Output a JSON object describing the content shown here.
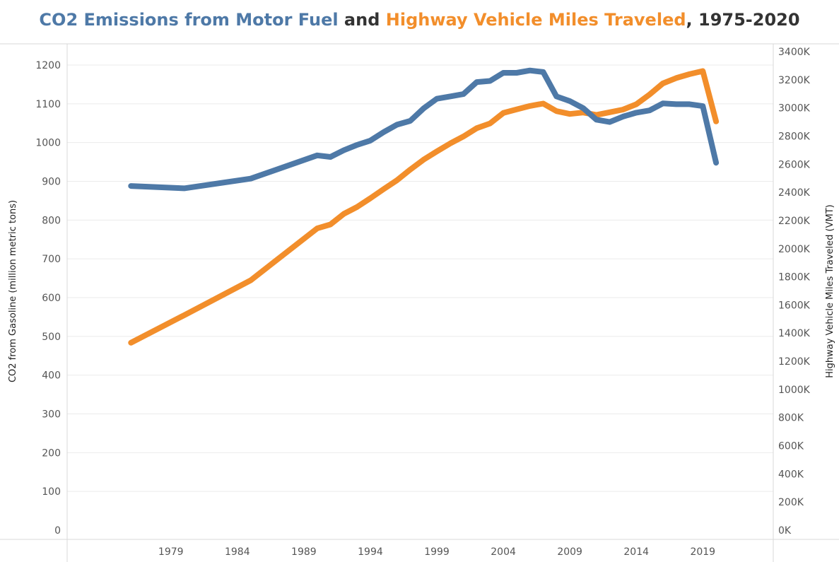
{
  "title": {
    "part1": "CO2 Emissions from Motor Fuel",
    "part2": " and ",
    "part3": "Highway Vehicle Miles Traveled",
    "part4": ", 1975-2020"
  },
  "colors": {
    "co2": "#4e79a7",
    "vmt": "#f28e2b",
    "grid": "#ebebeb",
    "axis": "#d9d9d9",
    "title_dark": "#333333"
  },
  "chart_data": {
    "type": "line",
    "x": [
      1976,
      1980,
      1985,
      1990,
      1991,
      1992,
      1993,
      1994,
      1995,
      1996,
      1997,
      1998,
      1999,
      2000,
      2001,
      2002,
      2003,
      2004,
      2005,
      2006,
      2007,
      2008,
      2009,
      2010,
      2011,
      2012,
      2013,
      2014,
      2015,
      2016,
      2017,
      2018,
      2019,
      2020
    ],
    "series": [
      {
        "name": "CO2 Emissions from Motor Fuel",
        "axis": "left",
        "values": [
          888,
          882,
          907,
          967,
          963,
          980,
          994,
          1005,
          1027,
          1046,
          1056,
          1088,
          1113,
          1119,
          1125,
          1156,
          1159,
          1180,
          1180,
          1186,
          1182,
          1119,
          1107,
          1089,
          1059,
          1053,
          1067,
          1077,
          1083,
          1101,
          1099,
          1099,
          1094,
          948
        ]
      },
      {
        "name": "Highway Vehicle Miles Traveled",
        "axis": "right",
        "values": [
          1332000,
          1527000,
          1775000,
          2144000,
          2172000,
          2247000,
          2296000,
          2358000,
          2423000,
          2486000,
          2562000,
          2632000,
          2691000,
          2747000,
          2797000,
          2856000,
          2890000,
          2964000,
          2989000,
          3014000,
          3031000,
          2977000,
          2957000,
          2967000,
          2950000,
          2969000,
          2988000,
          3026000,
          3095000,
          3174000,
          3212000,
          3240000,
          3262000,
          2904000
        ]
      }
    ],
    "x_ticks": [
      "1979",
      "1984",
      "1989",
      "1994",
      "1999",
      "2004",
      "2009",
      "2014",
      "2019"
    ],
    "x_tick_values": [
      1979,
      1984,
      1989,
      1994,
      1999,
      2004,
      2009,
      2014,
      2019
    ],
    "xlim": [
      1971.2,
      2024.3
    ],
    "y_left": {
      "label": "CO2 from Gasoline (million metric tons)",
      "ylim": [
        0,
        1200
      ],
      "ticks": [
        "0",
        "100",
        "200",
        "300",
        "400",
        "500",
        "600",
        "700",
        "800",
        "900",
        "1000",
        "1100",
        "1200"
      ],
      "tick_values": [
        0,
        100,
        200,
        300,
        400,
        500,
        600,
        700,
        800,
        900,
        1000,
        1100,
        1200
      ]
    },
    "y_right": {
      "label": "Highway Vehicle Miles Traveled (VMT)",
      "ylim": [
        0,
        3400000
      ],
      "ticks": [
        "0K",
        "200K",
        "400K",
        "600K",
        "800K",
        "1000K",
        "1200K",
        "1400K",
        "1600K",
        "1800K",
        "2000K",
        "2200K",
        "2400K",
        "2600K",
        "2800K",
        "3000K",
        "3200K",
        "3400K"
      ],
      "tick_values": [
        0,
        200000,
        400000,
        600000,
        800000,
        1000000,
        1200000,
        1400000,
        1600000,
        1800000,
        2000000,
        2200000,
        2400000,
        2600000,
        2800000,
        3000000,
        3200000,
        3400000
      ]
    },
    "grid": true,
    "legend": "none"
  }
}
